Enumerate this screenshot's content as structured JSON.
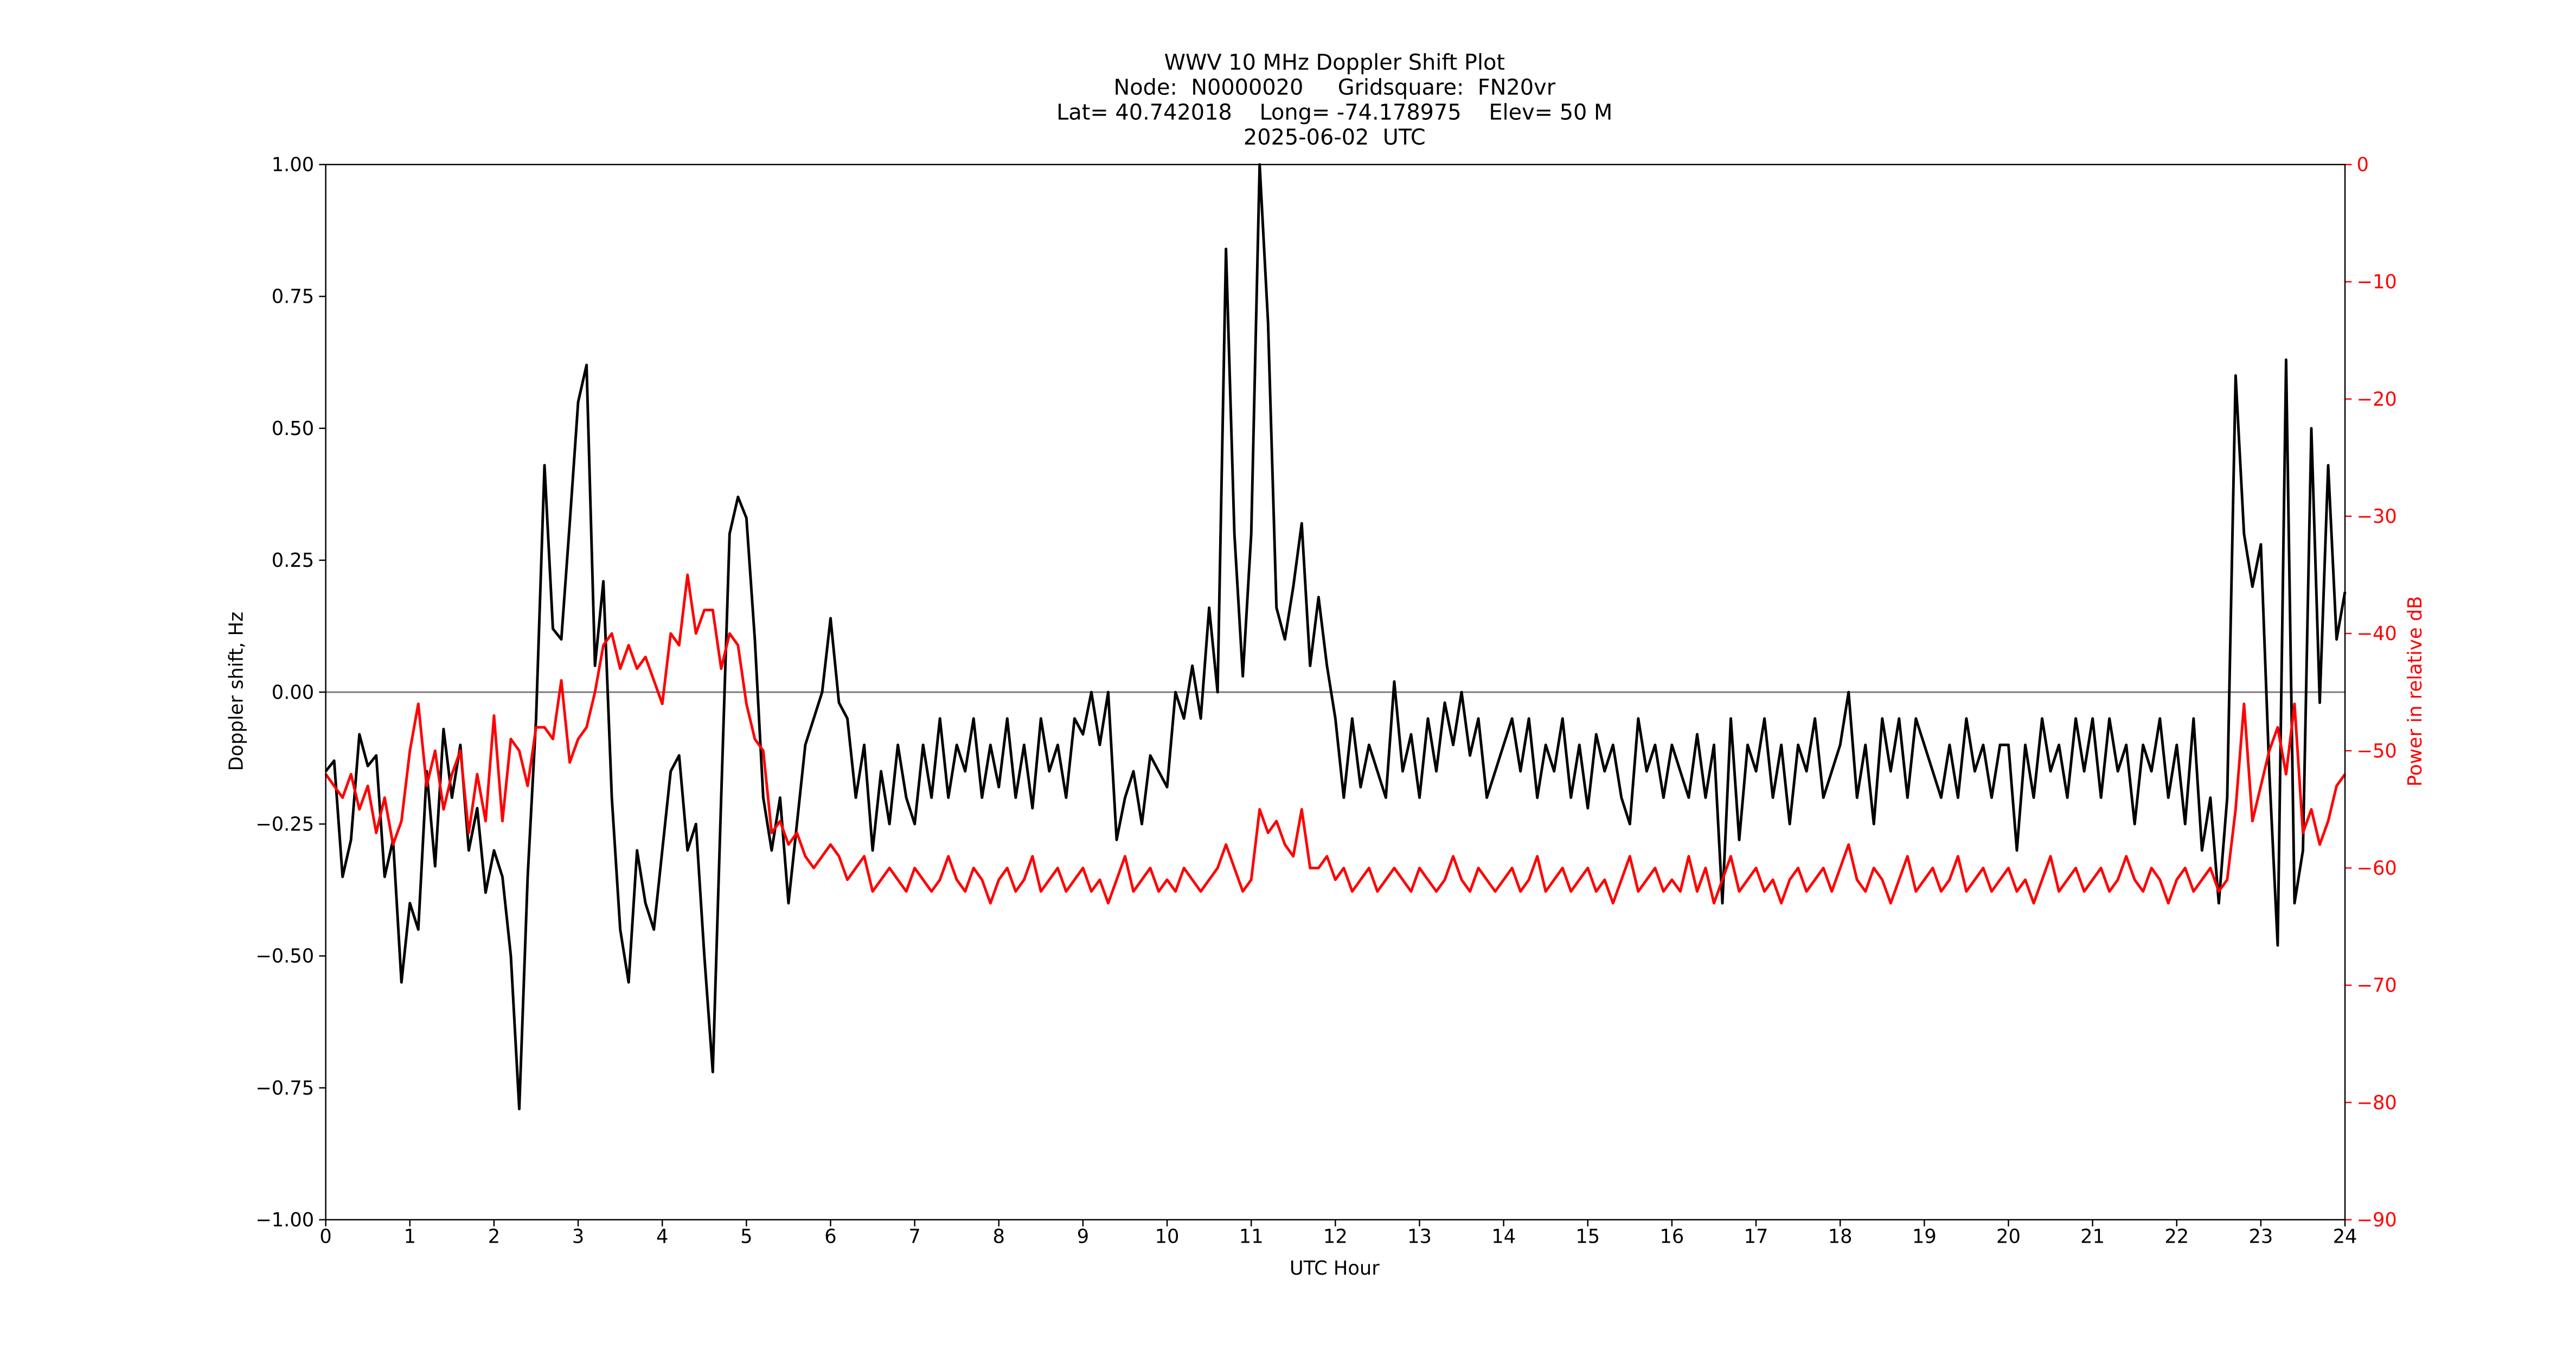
{
  "chart_data": {
    "type": "line",
    "title_lines": [
      "WWV 10 MHz Doppler Shift Plot",
      "Node:  N0000020     Gridsquare:  FN20vr",
      "Lat= 40.742018    Long= -74.178975    Elev= 50 M",
      "2025-06-02  UTC"
    ],
    "xlabel": "UTC Hour",
    "ylabel": "Doppler shift, Hz",
    "y2label": "Power in relative dB",
    "y2color": "#ff0000",
    "xlim": [
      0,
      24
    ],
    "xticks": [
      0,
      1,
      2,
      3,
      4,
      5,
      6,
      7,
      8,
      9,
      10,
      11,
      12,
      13,
      14,
      15,
      16,
      17,
      18,
      19,
      20,
      21,
      22,
      23,
      24
    ],
    "ylim": [
      -1,
      1
    ],
    "yticks": [
      {
        "value": -1,
        "label": "−1.00"
      },
      {
        "value": -0.75,
        "label": "−0.75"
      },
      {
        "value": -0.5,
        "label": "−0.50"
      },
      {
        "value": -0.25,
        "label": "−0.25"
      },
      {
        "value": 0,
        "label": "0.00"
      },
      {
        "value": 0.25,
        "label": "0.25"
      },
      {
        "value": 0.5,
        "label": "0.50"
      },
      {
        "value": 0.75,
        "label": "0.75"
      },
      {
        "value": 1,
        "label": "1.00"
      }
    ],
    "y2lim": [
      -90,
      0
    ],
    "y2ticks": [
      {
        "value": -90,
        "label": "−90"
      },
      {
        "value": -80,
        "label": "−80"
      },
      {
        "value": -70,
        "label": "−70"
      },
      {
        "value": -60,
        "label": "−60"
      },
      {
        "value": -50,
        "label": "−50"
      },
      {
        "value": -40,
        "label": "−40"
      },
      {
        "value": -30,
        "label": "−30"
      },
      {
        "value": -20,
        "label": "−20"
      },
      {
        "value": -10,
        "label": "−10"
      },
      0
    ],
    "hline": {
      "value": 0,
      "color": "#808080"
    },
    "x": [
      0,
      0.1,
      0.2,
      0.3,
      0.4,
      0.5,
      0.6,
      0.7,
      0.8,
      0.9,
      1,
      1.1,
      1.2,
      1.3,
      1.4,
      1.5,
      1.6,
      1.7,
      1.8,
      1.9,
      2,
      2.1,
      2.2,
      2.3,
      2.4,
      2.5,
      2.6,
      2.7,
      2.8,
      2.9,
      3,
      3.1,
      3.2,
      3.3,
      3.4,
      3.5,
      3.6,
      3.7,
      3.8,
      3.9,
      4,
      4.1,
      4.2,
      4.3,
      4.4,
      4.5,
      4.6,
      4.7,
      4.8,
      4.9,
      5,
      5.1,
      5.2,
      5.3,
      5.4,
      5.5,
      5.6,
      5.7,
      5.8,
      5.9,
      6,
      6.1,
      6.2,
      6.3,
      6.4,
      6.5,
      6.6,
      6.7,
      6.8,
      6.9,
      7,
      7.1,
      7.2,
      7.3,
      7.4,
      7.5,
      7.6,
      7.7,
      7.8,
      7.9,
      8,
      8.1,
      8.2,
      8.3,
      8.4,
      8.5,
      8.6,
      8.7,
      8.8,
      8.9,
      9,
      9.1,
      9.2,
      9.3,
      9.4,
      9.5,
      9.6,
      9.7,
      9.8,
      9.9,
      10,
      10.1,
      10.2,
      10.3,
      10.4,
      10.5,
      10.6,
      10.7,
      10.8,
      10.9,
      11,
      11.1,
      11.2,
      11.3,
      11.4,
      11.5,
      11.6,
      11.7,
      11.8,
      11.9,
      12,
      12.1,
      12.2,
      12.3,
      12.4,
      12.5,
      12.6,
      12.7,
      12.8,
      12.9,
      13,
      13.1,
      13.2,
      13.3,
      13.4,
      13.5,
      13.6,
      13.7,
      13.8,
      13.9,
      14,
      14.1,
      14.2,
      14.3,
      14.4,
      14.5,
      14.6,
      14.7,
      14.8,
      14.9,
      15,
      15.1,
      15.2,
      15.3,
      15.4,
      15.5,
      15.6,
      15.7,
      15.8,
      15.9,
      16,
      16.1,
      16.2,
      16.3,
      16.4,
      16.5,
      16.6,
      16.7,
      16.8,
      16.9,
      17,
      17.1,
      17.2,
      17.3,
      17.4,
      17.5,
      17.6,
      17.7,
      17.8,
      17.9,
      18,
      18.1,
      18.2,
      18.3,
      18.4,
      18.5,
      18.6,
      18.7,
      18.8,
      18.9,
      19,
      19.1,
      19.2,
      19.3,
      19.4,
      19.5,
      19.6,
      19.7,
      19.8,
      19.9,
      20,
      20.1,
      20.2,
      20.3,
      20.4,
      20.5,
      20.6,
      20.7,
      20.8,
      20.9,
      21,
      21.1,
      21.2,
      21.3,
      21.4,
      21.5,
      21.6,
      21.7,
      21.8,
      21.9,
      22,
      22.1,
      22.2,
      22.3,
      22.4,
      22.5,
      22.6,
      22.7,
      22.8,
      22.9,
      23,
      23.1,
      23.2,
      23.3,
      23.4,
      23.5,
      23.6,
      23.7,
      23.8,
      23.9,
      24
    ],
    "series": [
      {
        "color": "#000000",
        "values": [
          -0.15,
          -0.13,
          -0.35,
          -0.28,
          -0.08,
          -0.14,
          -0.12,
          -0.35,
          -0.28,
          -0.55,
          -0.4,
          -0.45,
          -0.15,
          -0.33,
          -0.07,
          -0.2,
          -0.1,
          -0.3,
          -0.22,
          -0.38,
          -0.3,
          -0.35,
          -0.5,
          -0.79,
          -0.35,
          -0.05,
          0.43,
          0.12,
          0.1,
          0.32,
          0.55,
          0.62,
          0.05,
          0.21,
          -0.2,
          -0.45,
          -0.55,
          -0.3,
          -0.4,
          -0.45,
          -0.3,
          -0.15,
          -0.12,
          -0.3,
          -0.25,
          -0.5,
          -0.72,
          -0.2,
          0.3,
          0.37,
          0.33,
          0.1,
          -0.2,
          -0.3,
          -0.2,
          -0.4,
          -0.25,
          -0.1,
          -0.05,
          0,
          0.14,
          -0.02,
          -0.05,
          -0.2,
          -0.1,
          -0.3,
          -0.15,
          -0.25,
          -0.1,
          -0.2,
          -0.25,
          -0.1,
          -0.2,
          -0.05,
          -0.2,
          -0.1,
          -0.15,
          -0.05,
          -0.2,
          -0.1,
          -0.18,
          -0.05,
          -0.2,
          -0.1,
          -0.22,
          -0.05,
          -0.15,
          -0.1,
          -0.2,
          -0.05,
          -0.08,
          0,
          -0.1,
          0,
          -0.28,
          -0.2,
          -0.15,
          -0.25,
          -0.12,
          -0.15,
          -0.18,
          0,
          -0.05,
          0.05,
          -0.05,
          0.16,
          0,
          0.84,
          0.3,
          0.03,
          0.3,
          1,
          0.7,
          0.16,
          0.1,
          0.2,
          0.32,
          0.05,
          0.18,
          0.05,
          -0.05,
          -0.2,
          -0.05,
          -0.18,
          -0.1,
          -0.15,
          -0.2,
          0.02,
          -0.15,
          -0.08,
          -0.2,
          -0.05,
          -0.15,
          -0.02,
          -0.1,
          0,
          -0.12,
          -0.05,
          -0.2,
          -0.15,
          -0.1,
          -0.05,
          -0.15,
          -0.05,
          -0.2,
          -0.1,
          -0.15,
          -0.05,
          -0.2,
          -0.1,
          -0.22,
          -0.08,
          -0.15,
          -0.1,
          -0.2,
          -0.25,
          -0.05,
          -0.15,
          -0.1,
          -0.2,
          -0.1,
          -0.15,
          -0.2,
          -0.08,
          -0.2,
          -0.1,
          -0.4,
          -0.05,
          -0.28,
          -0.1,
          -0.15,
          -0.05,
          -0.2,
          -0.1,
          -0.25,
          -0.1,
          -0.15,
          -0.05,
          -0.2,
          -0.15,
          -0.1,
          0,
          -0.2,
          -0.1,
          -0.25,
          -0.05,
          -0.15,
          -0.05,
          -0.2,
          -0.05,
          -0.1,
          -0.15,
          -0.2,
          -0.1,
          -0.2,
          -0.05,
          -0.15,
          -0.1,
          -0.2,
          -0.1,
          -0.1,
          -0.3,
          -0.1,
          -0.2,
          -0.05,
          -0.15,
          -0.1,
          -0.2,
          -0.05,
          -0.15,
          -0.05,
          -0.2,
          -0.05,
          -0.15,
          -0.1,
          -0.25,
          -0.1,
          -0.15,
          -0.05,
          -0.2,
          -0.1,
          -0.25,
          -0.05,
          -0.3,
          -0.2,
          -0.4,
          -0.2,
          0.6,
          0.3,
          0.2,
          0.28,
          -0.15,
          -0.48,
          0.63,
          -0.4,
          -0.3,
          0.5,
          -0.02,
          0.43,
          0.1,
          0.19
        ]
      },
      {
        "color": "#ff0000",
        "axis": "y2",
        "values": [
          -52,
          -53,
          -54,
          -52,
          -55,
          -53,
          -57,
          -54,
          -58,
          -56,
          -50,
          -46,
          -53,
          -50,
          -55,
          -52,
          -50,
          -57,
          -52,
          -56,
          -47,
          -56,
          -49,
          -50,
          -53,
          -48,
          -48,
          -49,
          -44,
          -51,
          -49,
          -48,
          -45,
          -41,
          -40,
          -43,
          -41,
          -43,
          -42,
          -44,
          -46,
          -40,
          -41,
          -35,
          -40,
          -38,
          -38,
          -43,
          -40,
          -41,
          -46,
          -49,
          -50,
          -57,
          -56,
          -58,
          -57,
          -59,
          -60,
          -59,
          -58,
          -59,
          -61,
          -60,
          -59,
          -62,
          -61,
          -60,
          -61,
          -62,
          -60,
          -61,
          -62,
          -61,
          -59,
          -61,
          -62,
          -60,
          -61,
          -63,
          -61,
          -60,
          -62,
          -61,
          -59,
          -62,
          -61,
          -60,
          -62,
          -61,
          -60,
          -62,
          -61,
          -63,
          -61,
          -59,
          -62,
          -61,
          -60,
          -62,
          -61,
          -62,
          -60,
          -61,
          -62,
          -61,
          -60,
          -58,
          -60,
          -62,
          -61,
          -55,
          -57,
          -56,
          -58,
          -59,
          -55,
          -60,
          -60,
          -59,
          -61,
          -60,
          -62,
          -61,
          -60,
          -62,
          -61,
          -60,
          -61,
          -62,
          -60,
          -61,
          -62,
          -61,
          -59,
          -61,
          -62,
          -60,
          -61,
          -62,
          -61,
          -60,
          -62,
          -61,
          -59,
          -62,
          -61,
          -60,
          -62,
          -61,
          -60,
          -62,
          -61,
          -63,
          -61,
          -59,
          -62,
          -61,
          -60,
          -62,
          -61,
          -62,
          -59,
          -62,
          -60,
          -63,
          -61,
          -59,
          -62,
          -61,
          -60,
          -62,
          -61,
          -63,
          -61,
          -60,
          -62,
          -61,
          -60,
          -62,
          -60,
          -58,
          -61,
          -62,
          -60,
          -61,
          -63,
          -61,
          -59,
          -62,
          -61,
          -60,
          -62,
          -61,
          -59,
          -62,
          -61,
          -60,
          -62,
          -61,
          -60,
          -62,
          -61,
          -63,
          -61,
          -59,
          -62,
          -61,
          -60,
          -62,
          -61,
          -60,
          -62,
          -61,
          -59,
          -61,
          -62,
          -60,
          -61,
          -63,
          -61,
          -60,
          -62,
          -61,
          -60,
          -62,
          -61,
          -55,
          -46,
          -56,
          -53,
          -50,
          -48,
          -52,
          -46,
          -57,
          -55,
          -58,
          -56,
          -53,
          -52
        ]
      }
    ]
  }
}
